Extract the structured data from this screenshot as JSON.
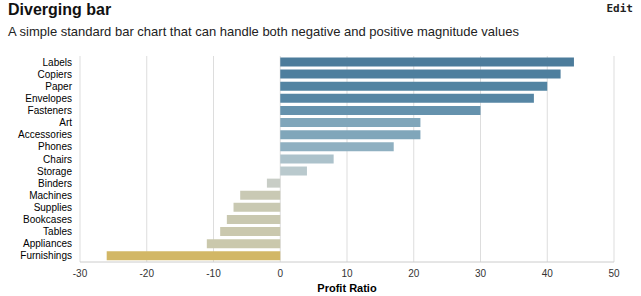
{
  "chart_data": {
    "type": "bar",
    "title": "Diverging bar",
    "subtitle": "A simple standard bar chart that can handle both negative and positive magnitude values",
    "annotations": [
      "Edit"
    ],
    "orientation": "horizontal",
    "categories": [
      "Labels",
      "Copiers",
      "Paper",
      "Envelopes",
      "Fasteners",
      "Art",
      "Accessories",
      "Phones",
      "Chairs",
      "Storage",
      "Binders",
      "Machines",
      "Supplies",
      "Bookcases",
      "Tables",
      "Appliances",
      "Furnishings"
    ],
    "values": [
      44,
      42,
      40,
      38,
      30,
      21,
      21,
      17,
      8,
      4,
      -2,
      -6,
      -7,
      -8,
      -9,
      -11,
      -26
    ],
    "colors": [
      "#4c7c9b",
      "#4e7f9e",
      "#5284a2",
      "#5686a4",
      "#6592ad",
      "#80a6ba",
      "#80a6ba",
      "#8fb0c1",
      "#acc2cb",
      "#b9c9cd",
      "#c8cdc6",
      "#c9c9b4",
      "#c9c9b2",
      "#c9c8b0",
      "#cac8ae",
      "#cac8ac",
      "#d2b766"
    ],
    "x_label": "Profit Ratio",
    "xlim": [
      -30,
      50
    ],
    "xticks": [
      -30,
      -20,
      -10,
      0,
      10,
      20,
      30,
      40,
      50
    ],
    "grid": true
  }
}
